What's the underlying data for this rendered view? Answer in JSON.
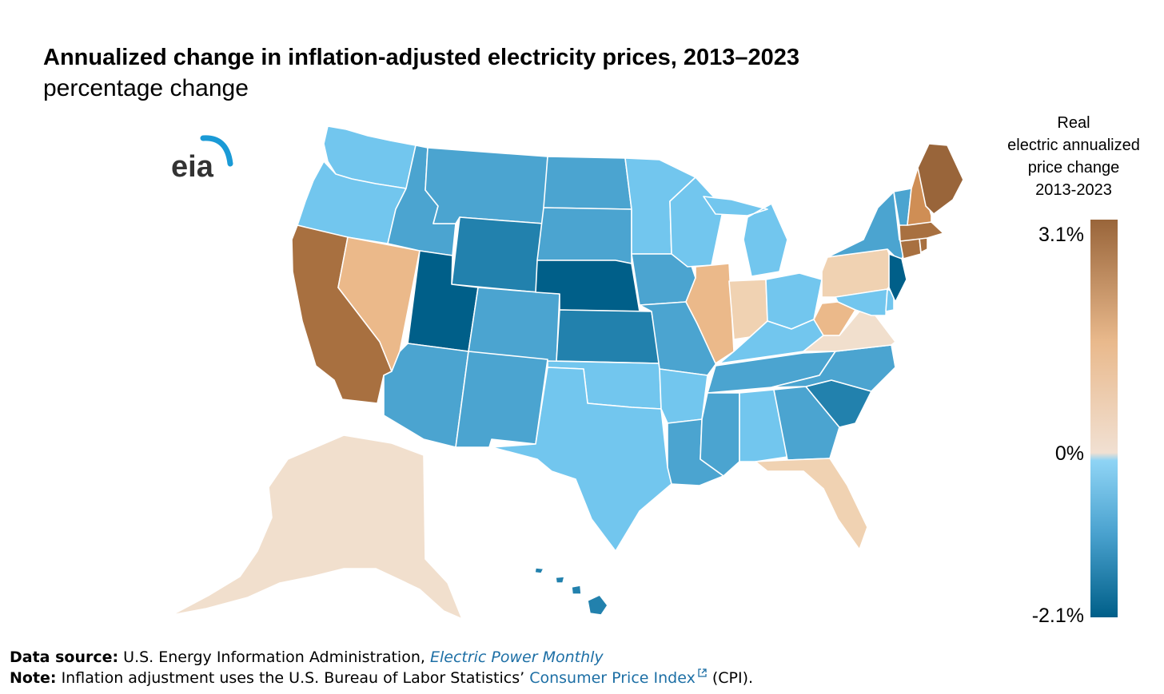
{
  "header": {
    "title": "Annualized change in inflation-adjusted electricity prices, 2013–2023",
    "subtitle": "percentage change"
  },
  "logo": {
    "text": "eia",
    "arc_color": "#1a9ad6",
    "text_color": "#333333"
  },
  "legend": {
    "title_lines": [
      "Real",
      "electric annualized",
      "price change",
      "2013-2023"
    ],
    "max_label": "3.1%",
    "zero_label": "0%",
    "min_label": "-2.1%",
    "max": 3.1,
    "min": -2.1,
    "gradient_stops": [
      {
        "value": 3.1,
        "color": "#99653a"
      },
      {
        "value": 1.5,
        "color": "#e9b98c"
      },
      {
        "value": 0.05,
        "color": "#f1e0d2"
      },
      {
        "value": -0.05,
        "color": "#8fd4f5"
      },
      {
        "value": -1.0,
        "color": "#4aa2cf"
      },
      {
        "value": -2.1,
        "color": "#005f89"
      }
    ]
  },
  "footer": {
    "source_label": "Data source:",
    "source_text": "U.S. Energy Information Administration,",
    "source_link": "Electric Power Monthly",
    "note_label": "Note:",
    "note_text": "Inflation adjustment uses the U.S. Bureau of Labor Statistics’",
    "note_link": "Consumer Price Index",
    "note_link_icon": "external-link-icon",
    "note_end": "(CPI)."
  },
  "colors": {
    "darkest_blue": "#005f89",
    "dark_blue": "#2281ad",
    "mid_blue": "#4ba4d0",
    "light_blue": "#72c6ee",
    "pale": "#f1dfcd",
    "light_tan": "#f0d2b2",
    "tan": "#ebb98a",
    "mid_brown": "#cf8e55",
    "brown": "#a87040",
    "dark_brown": "#99653a"
  },
  "states": [
    {
      "id": "WA",
      "color": "#72c6ee"
    },
    {
      "id": "OR",
      "color": "#72c6ee"
    },
    {
      "id": "CA",
      "color": "#a87040"
    },
    {
      "id": "NV",
      "color": "#ebb98a"
    },
    {
      "id": "ID",
      "color": "#4ba4d0"
    },
    {
      "id": "MT",
      "color": "#4ba4d0"
    },
    {
      "id": "WY",
      "color": "#2281ad"
    },
    {
      "id": "UT",
      "color": "#005f89"
    },
    {
      "id": "CO",
      "color": "#4ba4d0"
    },
    {
      "id": "AZ",
      "color": "#4ba4d0"
    },
    {
      "id": "NM",
      "color": "#4ba4d0"
    },
    {
      "id": "ND",
      "color": "#4ba4d0"
    },
    {
      "id": "SD",
      "color": "#4ba4d0"
    },
    {
      "id": "NE",
      "color": "#005f89"
    },
    {
      "id": "KS",
      "color": "#2281ad"
    },
    {
      "id": "OK",
      "color": "#72c6ee"
    },
    {
      "id": "TX",
      "color": "#72c6ee"
    },
    {
      "id": "MN",
      "color": "#72c6ee"
    },
    {
      "id": "IA",
      "color": "#4ba4d0"
    },
    {
      "id": "MO",
      "color": "#4ba4d0"
    },
    {
      "id": "AR",
      "color": "#72c6ee"
    },
    {
      "id": "LA",
      "color": "#4ba4d0"
    },
    {
      "id": "WI",
      "color": "#72c6ee"
    },
    {
      "id": "IL",
      "color": "#ebb98a"
    },
    {
      "id": "MI",
      "color": "#72c6ee"
    },
    {
      "id": "IN",
      "color": "#f0d2b2"
    },
    {
      "id": "OH",
      "color": "#72c6ee"
    },
    {
      "id": "KY",
      "color": "#72c6ee"
    },
    {
      "id": "TN",
      "color": "#4ba4d0"
    },
    {
      "id": "MS",
      "color": "#4ba4d0"
    },
    {
      "id": "AL",
      "color": "#72c6ee"
    },
    {
      "id": "GA",
      "color": "#4ba4d0"
    },
    {
      "id": "FL",
      "color": "#f0d2b2"
    },
    {
      "id": "SC",
      "color": "#2281ad"
    },
    {
      "id": "NC",
      "color": "#4ba4d0"
    },
    {
      "id": "VA",
      "color": "#f1dfcd"
    },
    {
      "id": "WV",
      "color": "#ebb98a"
    },
    {
      "id": "PA",
      "color": "#f0d2b2"
    },
    {
      "id": "NY",
      "color": "#4ba4d0"
    },
    {
      "id": "MD",
      "color": "#72c6ee"
    },
    {
      "id": "DE",
      "color": "#72c6ee"
    },
    {
      "id": "NJ",
      "color": "#005f89"
    },
    {
      "id": "CT",
      "color": "#a87040"
    },
    {
      "id": "RI",
      "color": "#a87040"
    },
    {
      "id": "MA",
      "color": "#a87040"
    },
    {
      "id": "VT",
      "color": "#4ba4d0"
    },
    {
      "id": "NH",
      "color": "#cf8e55"
    },
    {
      "id": "ME",
      "color": "#99653a"
    },
    {
      "id": "AK",
      "color": "#f1dfcd"
    },
    {
      "id": "HI",
      "color": "#2281ad"
    }
  ]
}
